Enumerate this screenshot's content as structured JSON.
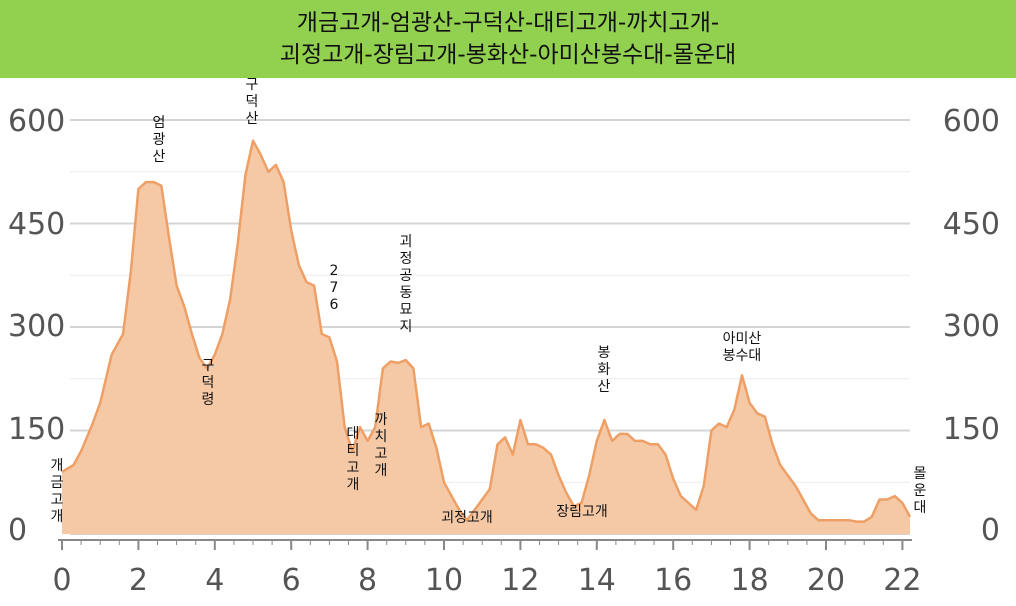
{
  "header": {
    "title_line1": "개금고개-엄광산-구덕산-대티고개-까치고개-",
    "title_line2": "괴정고개-장림고개-봉화산-아미산봉수대-몰운대"
  },
  "colors": {
    "header_bg": "#92d050",
    "area_fill": "#f6c9a6",
    "area_stroke": "#ee9f66",
    "grid": "#d4d4d4",
    "axis_text": "#555555"
  },
  "chart_data": {
    "type": "area",
    "x_unit": "km",
    "y_unit": "m",
    "xlim": [
      0,
      22.5
    ],
    "ylim": [
      0,
      650
    ],
    "x_ticks": [
      0,
      2,
      4,
      6,
      8,
      10,
      12,
      14,
      16,
      18,
      20,
      22
    ],
    "y_ticks": [
      0,
      150,
      300,
      450,
      600
    ],
    "grid": "horizontal",
    "x": [
      0,
      0.3,
      0.5,
      0.8,
      1.0,
      1.3,
      1.6,
      1.8,
      2.0,
      2.2,
      2.4,
      2.6,
      2.8,
      3.0,
      3.2,
      3.4,
      3.6,
      3.8,
      4.0,
      4.2,
      4.4,
      4.6,
      4.8,
      5.0,
      5.2,
      5.4,
      5.6,
      5.8,
      6.0,
      6.2,
      6.4,
      6.6,
      6.8,
      7.0,
      7.2,
      7.4,
      7.6,
      7.8,
      8.0,
      8.2,
      8.4,
      8.6,
      8.8,
      9.0,
      9.2,
      9.4,
      9.6,
      9.8,
      10.0,
      10.2,
      10.4,
      10.6,
      10.8,
      11.0,
      11.2,
      11.4,
      11.6,
      11.8,
      12.0,
      12.2,
      12.4,
      12.6,
      12.8,
      13.0,
      13.2,
      13.4,
      13.6,
      13.8,
      14.0,
      14.2,
      14.4,
      14.6,
      14.8,
      15.0,
      15.2,
      15.4,
      15.6,
      15.8,
      16.0,
      16.2,
      16.4,
      16.6,
      16.8,
      17.0,
      17.2,
      17.4,
      17.6,
      17.8,
      18.0,
      18.2,
      18.4,
      18.6,
      18.8,
      19.0,
      19.2,
      19.4,
      19.6,
      19.8,
      20.0,
      20.2,
      20.4,
      20.6,
      20.8,
      21.0,
      21.2,
      21.4,
      21.6,
      21.8,
      22.0,
      22.2
    ],
    "values": [
      90,
      100,
      120,
      160,
      190,
      260,
      290,
      380,
      500,
      510,
      510,
      505,
      430,
      360,
      330,
      290,
      255,
      240,
      260,
      290,
      340,
      420,
      520,
      570,
      550,
      525,
      535,
      510,
      440,
      390,
      365,
      360,
      290,
      285,
      250,
      155,
      120,
      155,
      135,
      155,
      240,
      250,
      248,
      252,
      240,
      155,
      160,
      125,
      75,
      55,
      35,
      20,
      35,
      50,
      65,
      130,
      140,
      115,
      165,
      130,
      130,
      125,
      115,
      85,
      60,
      40,
      45,
      85,
      135,
      165,
      135,
      145,
      145,
      135,
      135,
      130,
      130,
      115,
      80,
      55,
      45,
      35,
      70,
      150,
      160,
      155,
      180,
      230,
      190,
      175,
      170,
      130,
      100,
      85,
      70,
      50,
      30,
      20,
      20,
      20,
      20,
      20,
      18,
      18,
      25,
      50,
      50,
      55,
      45,
      25
    ],
    "annotations": [
      {
        "text": "개금고개",
        "x": 0,
        "y": 0,
        "orient": "vertical",
        "dx": 0,
        "anchor_y": 470
      },
      {
        "text": "엄광산",
        "x": 2.5,
        "y": 512,
        "orient": "vertical",
        "dx": 0,
        "anchor_y": 127
      },
      {
        "text": "구덕령",
        "x": 3.8,
        "y": 240,
        "orient": "vertical",
        "dx": 0,
        "anchor_y": 370
      },
      {
        "text": "구덕산",
        "x": 5.0,
        "y": 570,
        "orient": "vertical",
        "dx": 0,
        "anchor_y": 89
      },
      {
        "text": "276",
        "x": 7.0,
        "y": 290,
        "orient": "vertical",
        "dx": 0,
        "anchor_y": 275
      },
      {
        "text": "대티고개",
        "x": 7.6,
        "y": 120,
        "orient": "vertical",
        "dx": 0,
        "anchor_y": 438
      },
      {
        "text": "까치고개",
        "x": 8.3,
        "y": 135,
        "orient": "vertical",
        "dx": 0,
        "anchor_y": 424
      },
      {
        "text": "괴정공동묘지",
        "x": 9.0,
        "y": 252,
        "orient": "vertical",
        "dx": 0,
        "anchor_y": 246
      },
      {
        "text": "괴정고개",
        "x": 10.6,
        "y": 20,
        "orient": "horizontal",
        "dx": 0,
        "anchor_y": 522
      },
      {
        "text": "장림고개",
        "x": 14.0,
        "y": 40,
        "orient": "horizontal",
        "dx": 0,
        "anchor_y": 516
      },
      {
        "text": "봉화산",
        "x": 14.2,
        "y": 165,
        "orient": "vertical",
        "dx": 0,
        "anchor_y": 357
      },
      {
        "text": "아미산",
        "x": 17.8,
        "y": 230,
        "orient": "horizontal",
        "dx": 0,
        "anchor_y": 343
      },
      {
        "text": "봉수대",
        "x": 17.8,
        "y": 230,
        "orient": "horizontal",
        "dx": 0,
        "anchor_y": 360
      },
      {
        "text": "몰운대",
        "x": 22.4,
        "y": 25,
        "orient": "vertical",
        "dx": 0,
        "anchor_y": 478
      }
    ]
  }
}
